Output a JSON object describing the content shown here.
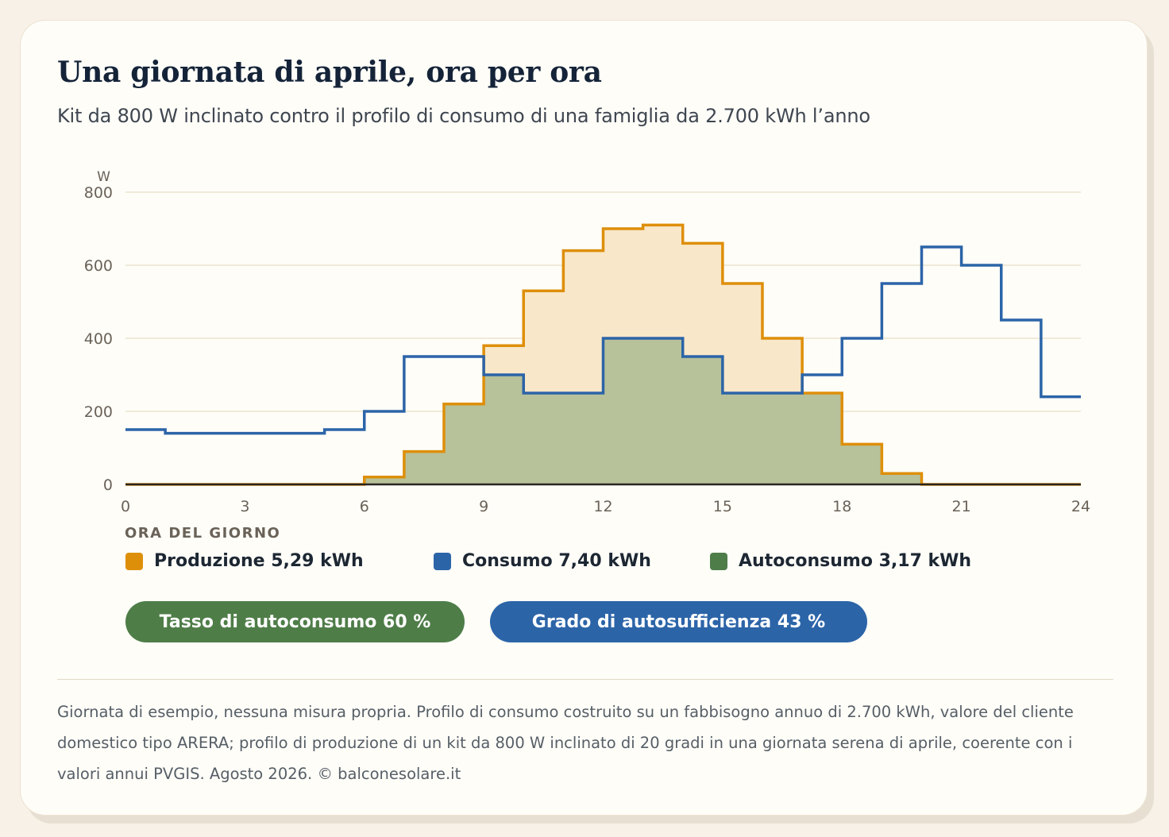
{
  "header": {
    "title": "Una giornata di aprile, ora per ora",
    "subtitle": "Kit da 800 W inclinato contro il profilo di consumo di una famiglia da 2.700 kWh l’anno"
  },
  "chart_data": {
    "type": "area",
    "step": true,
    "ylabel": "W",
    "xlabel": "ORA DEL GIORNO",
    "xlim": [
      0,
      24
    ],
    "ylim": [
      0,
      800
    ],
    "xticks": [
      "0",
      "3",
      "6",
      "9",
      "12",
      "15",
      "18",
      "21",
      "24"
    ],
    "yticks": [
      "0",
      "200",
      "400",
      "600",
      "800"
    ],
    "grid": true,
    "hours": [
      0,
      1,
      2,
      3,
      4,
      5,
      6,
      7,
      8,
      9,
      10,
      11,
      12,
      13,
      14,
      15,
      16,
      17,
      18,
      19,
      20,
      21,
      22,
      23
    ],
    "series": [
      {
        "name": "Produzione 5,29 kWh",
        "color": "#de8f0a",
        "fill": "#f8e7c9",
        "values": [
          0,
          0,
          0,
          0,
          0,
          0,
          20,
          90,
          220,
          380,
          530,
          640,
          700,
          710,
          660,
          550,
          400,
          250,
          110,
          30,
          0,
          0,
          0,
          0
        ]
      },
      {
        "name": "Consumo 7,40 kWh",
        "color": "#2c64a8",
        "values": [
          150,
          140,
          140,
          140,
          140,
          150,
          200,
          350,
          350,
          300,
          250,
          250,
          400,
          400,
          350,
          250,
          250,
          300,
          400,
          550,
          650,
          600,
          450,
          240
        ]
      },
      {
        "name": "Autoconsumo 3,17 kWh",
        "color": "#4e7d4a",
        "fill": "#b3bf98",
        "values": [
          0,
          0,
          0,
          0,
          0,
          0,
          20,
          90,
          220,
          300,
          250,
          250,
          400,
          400,
          350,
          250,
          250,
          250,
          110,
          30,
          0,
          0,
          0,
          0
        ]
      }
    ]
  },
  "badges": {
    "self_consumption": {
      "label": "Tasso di autoconsumo 60 %",
      "color": "#4f7d48"
    },
    "self_sufficiency": {
      "label": "Grado di autosufficienza 43 %",
      "color": "#2c64a8"
    }
  },
  "footer": {
    "note": "Giornata di esempio, nessuna misura propria. Profilo di consumo costruito su un fabbisogno annuo di 2.700 kWh, valore del cliente domestico tipo ARERA; profilo di produzione di un kit da 800 W inclinato di 20 gradi in una giornata serena di aprile, coerente con i valori annui PVGIS. Agosto 2026. © balconesolare.it"
  }
}
